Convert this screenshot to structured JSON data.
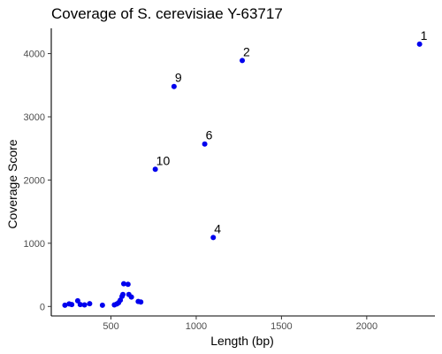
{
  "chart_data": {
    "type": "scatter",
    "title": "Coverage of S. cerevisiae Y-63717",
    "xlabel": "Length (bp)",
    "ylabel": "Coverage Score",
    "xlim": [
      150,
      2400
    ],
    "ylim": [
      -150,
      4400
    ],
    "x_ticks": [
      500,
      1000,
      1500,
      2000
    ],
    "y_ticks": [
      0,
      1000,
      2000,
      3000,
      4000
    ],
    "grid": false,
    "point_color": "#0000ee",
    "series": [
      {
        "points": [
          {
            "x": 2310,
            "y": 4150,
            "label": "1"
          },
          {
            "x": 1270,
            "y": 3890,
            "label": "2"
          },
          {
            "x": 870,
            "y": 3480,
            "label": "9"
          },
          {
            "x": 1050,
            "y": 2570,
            "label": "6"
          },
          {
            "x": 760,
            "y": 2170,
            "label": "10"
          },
          {
            "x": 1100,
            "y": 1090,
            "label": "4"
          },
          {
            "x": 230,
            "y": 20
          },
          {
            "x": 255,
            "y": 40
          },
          {
            "x": 270,
            "y": 30
          },
          {
            "x": 305,
            "y": 90
          },
          {
            "x": 320,
            "y": 30
          },
          {
            "x": 345,
            "y": 25
          },
          {
            "x": 375,
            "y": 45
          },
          {
            "x": 450,
            "y": 20
          },
          {
            "x": 520,
            "y": 25
          },
          {
            "x": 535,
            "y": 40
          },
          {
            "x": 545,
            "y": 60
          },
          {
            "x": 555,
            "y": 100
          },
          {
            "x": 565,
            "y": 160
          },
          {
            "x": 570,
            "y": 190
          },
          {
            "x": 575,
            "y": 360
          },
          {
            "x": 600,
            "y": 350
          },
          {
            "x": 605,
            "y": 190
          },
          {
            "x": 620,
            "y": 150
          },
          {
            "x": 660,
            "y": 80
          },
          {
            "x": 675,
            "y": 70
          }
        ]
      }
    ]
  }
}
